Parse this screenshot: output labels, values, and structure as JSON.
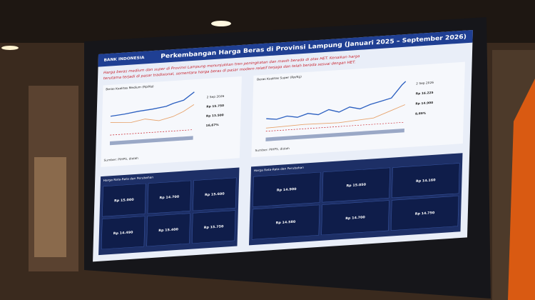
{
  "header": {
    "logo": "BANK INDONESIA",
    "title": "Perkembangan Harga Beras di Provinsi Lampung (Januari 2025 – September 2026)"
  },
  "subtitle": [
    "Harga beras medium dan super di Provinsi Lampung menunjukkan tren peningkatan dan masih berada di atas HET. Kenaikan harga",
    "terutama terjadi di pasar tradisional, sementara harga beras di pasar modern relatif terjaga dan telah berada sesuai dengan HET."
  ],
  "panels": [
    {
      "title": "Beras Kualitas Medium (Rp/Kg)",
      "date": "2 Sep 2026",
      "stats": [
        "Rp 15.750",
        "Rp 13.500",
        "16,67%"
      ],
      "source": "Sumber: PIHPS, diolah"
    },
    {
      "title": "Beras Kualitas Super (Rp/Kg)",
      "date": "2 Sep 2026",
      "stats": [
        "Rp 16.225",
        "Rp 14.900",
        "8,89%"
      ],
      "source": "Sumber: PIHPS, diolah"
    }
  ],
  "tables": [
    {
      "title": "Harga Rata-Rata dan Perubahan",
      "tiles": [
        "Rp 15.000",
        "Rp 14.700",
        "Rp 15.600",
        "Rp 14.490",
        "Rp 15.400",
        "Rp 15.750"
      ]
    },
    {
      "title": "Harga Rata-Rata dan Perubahan",
      "tiles": [
        "Rp 14.900",
        "Rp 15.050",
        "Rp 14.160",
        "Rp 14.580",
        "Rp 14.700",
        "Rp 14.750"
      ]
    }
  ]
}
